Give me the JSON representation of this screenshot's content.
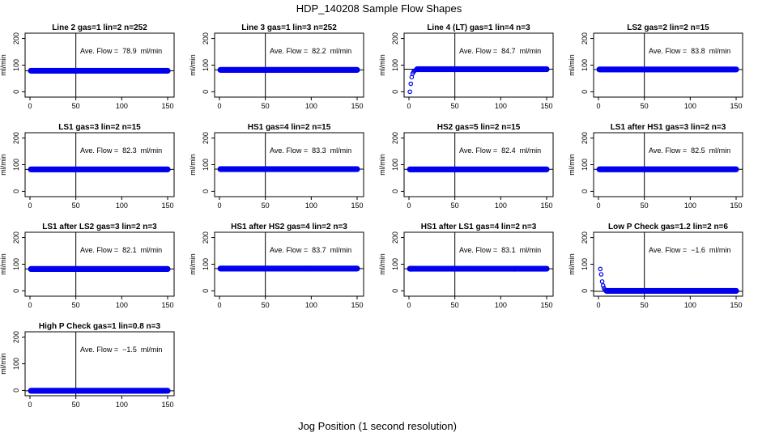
{
  "figure": {
    "title": "HDP_140208  Sample Flow Shapes",
    "xlabel": "Jog Position (1 second resolution)",
    "ylabel": "ml/min"
  },
  "chart_data": [
    {
      "type": "scatter",
      "title": "Line 2 gas=1 lin=2 n=252",
      "annotation": "Ave. Flow =  78.9  ml/min",
      "xlim": [
        0,
        150
      ],
      "ylim": [
        -20,
        220
      ],
      "yticks": [
        0,
        100,
        200
      ],
      "xticks": [
        0,
        50,
        100,
        150
      ],
      "vline_x": 50,
      "hline_y": 78.9,
      "points": {
        "x_range": [
          1,
          150
        ],
        "y": 78.9
      }
    },
    {
      "type": "scatter",
      "title": "Line 3 gas=1 lin=3 n=252",
      "annotation": "Ave. Flow =  82.2  ml/min",
      "xlim": [
        0,
        150
      ],
      "ylim": [
        -20,
        220
      ],
      "yticks": [
        0,
        100,
        200
      ],
      "xticks": [
        0,
        50,
        100,
        150
      ],
      "vline_x": 50,
      "hline_y": 82.2,
      "points": {
        "x_range": [
          1,
          150
        ],
        "y": 82.2
      }
    },
    {
      "type": "scatter",
      "title": "Line 4 (LT) gas=1 lin=4 n=3",
      "annotation": "Ave. Flow =  84.7  ml/min",
      "xlim": [
        0,
        150
      ],
      "ylim": [
        -20,
        220
      ],
      "yticks": [
        0,
        100,
        200
      ],
      "xticks": [
        0,
        50,
        100,
        150
      ],
      "vline_x": 50,
      "hline_y": 84.7,
      "points": {
        "x_range": [
          1,
          150
        ],
        "y": 84.7,
        "ramp": [
          [
            1,
            0
          ],
          [
            2,
            30
          ],
          [
            3,
            55
          ],
          [
            4,
            68
          ],
          [
            5,
            75
          ],
          [
            6,
            79
          ],
          [
            7,
            81
          ],
          [
            8,
            83
          ]
        ]
      }
    },
    {
      "type": "scatter",
      "title": "LS2 gas=2 lin=2 n=15",
      "annotation": "Ave. Flow =  83.8  ml/min",
      "xlim": [
        0,
        150
      ],
      "ylim": [
        -20,
        220
      ],
      "yticks": [
        0,
        100,
        200
      ],
      "xticks": [
        0,
        50,
        100,
        150
      ],
      "vline_x": 50,
      "hline_y": 83.8,
      "points": {
        "x_range": [
          1,
          150
        ],
        "y": 83.8
      }
    },
    {
      "type": "scatter",
      "title": "LS1 gas=3 lin=2 n=15",
      "annotation": "Ave. Flow =  82.3  ml/min",
      "xlim": [
        0,
        150
      ],
      "ylim": [
        -20,
        220
      ],
      "yticks": [
        0,
        100,
        200
      ],
      "xticks": [
        0,
        50,
        100,
        150
      ],
      "vline_x": 50,
      "hline_y": 82.3,
      "points": {
        "x_range": [
          1,
          150
        ],
        "y": 82.3
      }
    },
    {
      "type": "scatter",
      "title": "HS1 gas=4 lin=2 n=15",
      "annotation": "Ave. Flow =  83.3  ml/min",
      "xlim": [
        0,
        150
      ],
      "ylim": [
        -20,
        220
      ],
      "yticks": [
        0,
        100,
        200
      ],
      "xticks": [
        0,
        50,
        100,
        150
      ],
      "vline_x": 50,
      "hline_y": 83.3,
      "points": {
        "x_range": [
          1,
          150
        ],
        "y": 83.3
      }
    },
    {
      "type": "scatter",
      "title": "HS2 gas=5 lin=2 n=15",
      "annotation": "Ave. Flow =  82.4  ml/min",
      "xlim": [
        0,
        150
      ],
      "ylim": [
        -20,
        220
      ],
      "yticks": [
        0,
        100,
        200
      ],
      "xticks": [
        0,
        50,
        100,
        150
      ],
      "vline_x": 50,
      "hline_y": 82.4,
      "points": {
        "x_range": [
          1,
          150
        ],
        "y": 82.4
      }
    },
    {
      "type": "scatter",
      "title": "LS1 after HS1 gas=3 lin=2 n=3",
      "annotation": "Ave. Flow =  82.5  ml/min",
      "xlim": [
        0,
        150
      ],
      "ylim": [
        -20,
        220
      ],
      "yticks": [
        0,
        100,
        200
      ],
      "xticks": [
        0,
        50,
        100,
        150
      ],
      "vline_x": 50,
      "hline_y": 82.5,
      "points": {
        "x_range": [
          1,
          150
        ],
        "y": 82.5
      }
    },
    {
      "type": "scatter",
      "title": "LS1 after LS2 gas=3 lin=2 n=3",
      "annotation": "Ave. Flow =  82.1  ml/min",
      "xlim": [
        0,
        150
      ],
      "ylim": [
        -20,
        220
      ],
      "yticks": [
        0,
        100,
        200
      ],
      "xticks": [
        0,
        50,
        100,
        150
      ],
      "vline_x": 50,
      "hline_y": 82.1,
      "points": {
        "x_range": [
          1,
          150
        ],
        "y": 82.1
      }
    },
    {
      "type": "scatter",
      "title": "HS1 after HS2 gas=4 lin=2 n=3",
      "annotation": "Ave. Flow =  83.7  ml/min",
      "xlim": [
        0,
        150
      ],
      "ylim": [
        -20,
        220
      ],
      "yticks": [
        0,
        100,
        200
      ],
      "xticks": [
        0,
        50,
        100,
        150
      ],
      "vline_x": 50,
      "hline_y": 83.7,
      "points": {
        "x_range": [
          1,
          150
        ],
        "y": 83.7
      }
    },
    {
      "type": "scatter",
      "title": "HS1 after LS1 gas=4 lin=2 n=3",
      "annotation": "Ave. Flow =  83.1  ml/min",
      "xlim": [
        0,
        150
      ],
      "ylim": [
        -20,
        220
      ],
      "yticks": [
        0,
        100,
        200
      ],
      "xticks": [
        0,
        50,
        100,
        150
      ],
      "vline_x": 50,
      "hline_y": 83.1,
      "points": {
        "x_range": [
          1,
          150
        ],
        "y": 83.1
      }
    },
    {
      "type": "scatter",
      "title": "Low P Check gas=1.2 lin=2 n=6",
      "annotation": "Ave. Flow =  −1.6  ml/min",
      "xlim": [
        0,
        150
      ],
      "ylim": [
        -20,
        220
      ],
      "yticks": [
        0,
        100,
        200
      ],
      "xticks": [
        0,
        50,
        100,
        150
      ],
      "vline_x": 50,
      "hline_y": -1.6,
      "points": {
        "x_range": [
          1,
          150
        ],
        "y": 0,
        "ramp": [
          [
            2,
            82
          ],
          [
            3,
            62
          ],
          [
            4,
            35
          ],
          [
            5,
            20
          ],
          [
            6,
            10
          ],
          [
            7,
            4
          ],
          [
            8,
            1
          ]
        ]
      }
    },
    {
      "type": "scatter",
      "title": "High P Check gas=1 lin=0.8 n=3",
      "annotation": "Ave. Flow =  −1.5  ml/min",
      "xlim": [
        0,
        150
      ],
      "ylim": [
        -20,
        220
      ],
      "yticks": [
        0,
        100,
        200
      ],
      "xticks": [
        0,
        50,
        100,
        150
      ],
      "vline_x": 50,
      "hline_y": -1.5,
      "points": {
        "x_range": [
          1,
          150
        ],
        "y": -1.5
      }
    }
  ],
  "colors": {
    "points": "#0000ee",
    "lines": "#000000"
  }
}
